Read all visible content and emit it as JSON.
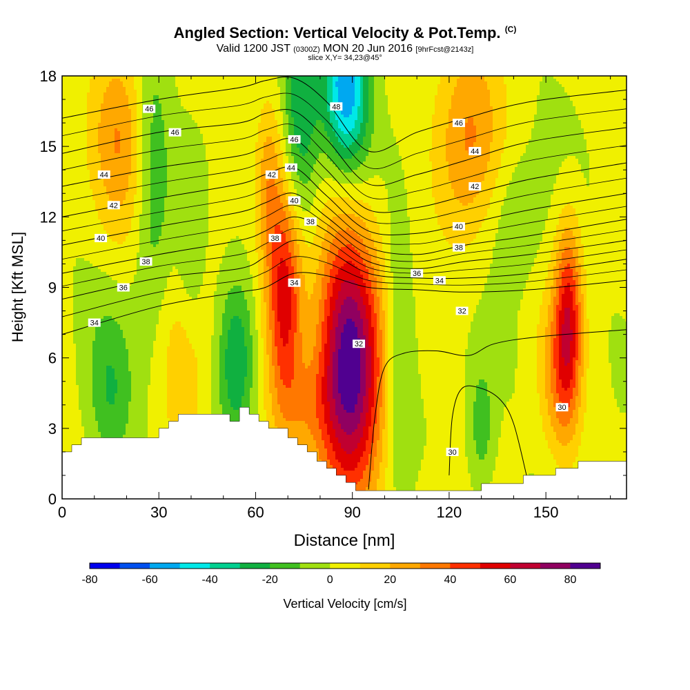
{
  "header": {
    "title": "Angled Section: Vertical Velocity & Pot.Temp.",
    "title_unit": "(C)",
    "valid_prefix": "Valid 1200 JST",
    "valid_utc": "(0300Z)",
    "valid_date": "MON 20 Jun 2016",
    "forecast_info": "[9hrFcst@2143z]",
    "slice_info": "slice X,Y= 34,23@45°"
  },
  "colors": {
    "scale": [
      "#0000ee",
      "#0050f0",
      "#00a8f0",
      "#00e8e8",
      "#00d090",
      "#10b040",
      "#40c020",
      "#a0e010",
      "#f0f000",
      "#ffd000",
      "#ffa800",
      "#ff7800",
      "#ff3000",
      "#e00000",
      "#c00030",
      "#900060",
      "#500090"
    ],
    "terrain": "#ffffff",
    "contour": "#000000"
  },
  "chart_data": {
    "type": "heatmap",
    "xlabel": "Distance [nm]",
    "ylabel": "Height [Kft MSL]",
    "xlim": [
      0,
      175
    ],
    "ylim": [
      0,
      18
    ],
    "xticks": [
      0,
      30,
      60,
      90,
      120,
      150
    ],
    "yticks": [
      0,
      3,
      6,
      9,
      12,
      15,
      18
    ],
    "colorbar": {
      "label": "Vertical Velocity [cm/s]",
      "tick_labels": [
        "-80",
        "-60",
        "-40",
        "-20",
        "0",
        "20",
        "40",
        "60",
        "80"
      ],
      "tick_values": [
        -80,
        -60,
        -40,
        -20,
        0,
        20,
        40,
        60,
        80
      ],
      "levels": [
        -80,
        -70,
        -60,
        -50,
        -40,
        -30,
        -20,
        -10,
        0,
        10,
        20,
        30,
        40,
        50,
        60,
        70,
        80,
        90
      ]
    },
    "terrain_profile": [
      [
        0,
        2.0
      ],
      [
        3,
        2.0
      ],
      [
        3,
        2.3
      ],
      [
        6,
        2.3
      ],
      [
        6,
        2.6
      ],
      [
        30,
        2.6
      ],
      [
        30,
        3.0
      ],
      [
        33,
        3.0
      ],
      [
        33,
        3.3
      ],
      [
        36,
        3.3
      ],
      [
        36,
        3.6
      ],
      [
        52,
        3.6
      ],
      [
        52,
        3.3
      ],
      [
        55,
        3.3
      ],
      [
        55,
        3.9
      ],
      [
        58,
        3.9
      ],
      [
        58,
        3.6
      ],
      [
        61,
        3.6
      ],
      [
        61,
        3.3
      ],
      [
        64,
        3.3
      ],
      [
        64,
        3.0
      ],
      [
        70,
        3.0
      ],
      [
        70,
        2.6
      ],
      [
        73,
        2.6
      ],
      [
        73,
        2.3
      ],
      [
        76,
        2.3
      ],
      [
        76,
        2.0
      ],
      [
        79,
        2.0
      ],
      [
        79,
        1.6
      ],
      [
        82,
        1.6
      ],
      [
        82,
        1.3
      ],
      [
        85,
        1.3
      ],
      [
        85,
        1.0
      ],
      [
        88,
        1.0
      ],
      [
        88,
        0.7
      ],
      [
        91,
        0.7
      ],
      [
        91,
        0.35
      ],
      [
        130,
        0.35
      ],
      [
        130,
        0.65
      ],
      [
        143,
        0.65
      ],
      [
        143,
        1.0
      ],
      [
        153,
        1.0
      ],
      [
        153,
        1.3
      ],
      [
        160,
        1.3
      ],
      [
        160,
        1.6
      ],
      [
        175,
        1.6
      ]
    ],
    "updrafts": [
      {
        "x": 89,
        "y": 5.5,
        "sx": 7,
        "sy": 4.2,
        "w": 85
      },
      {
        "x": 69,
        "y": 8.5,
        "sx": 4,
        "sy": 3.2,
        "w": 58
      },
      {
        "x": 157,
        "y": 7.5,
        "sx": 3,
        "sy": 3.0,
        "w": 50
      },
      {
        "x": 153,
        "y": 5.0,
        "sx": 4,
        "sy": 2.5,
        "w": 20
      },
      {
        "x": 18,
        "y": 15.5,
        "sx": 6,
        "sy": 3.0,
        "w": 25
      },
      {
        "x": 126,
        "y": 15.5,
        "sx": 7,
        "sy": 3.2,
        "w": 28
      },
      {
        "x": 64,
        "y": 13.5,
        "sx": 3,
        "sy": 2.5,
        "w": 22
      },
      {
        "x": 38,
        "y": 5.5,
        "sx": 5,
        "sy": 3.0,
        "w": 15
      },
      {
        "x": 75,
        "y": 4.0,
        "sx": 6,
        "sy": 1.5,
        "w": 15
      }
    ],
    "downdrafts": [
      {
        "x": 88,
        "y": 17.5,
        "sx": 5,
        "sy": 2.5,
        "w": 60
      },
      {
        "x": 74,
        "y": 16.5,
        "sx": 4,
        "sy": 3.5,
        "w": 35
      },
      {
        "x": 54,
        "y": 6.0,
        "sx": 4,
        "sy": 2.5,
        "w": 32
      },
      {
        "x": 28,
        "y": 14.0,
        "sx": 4,
        "sy": 5.0,
        "w": 18
      },
      {
        "x": 15,
        "y": 4.5,
        "sx": 5,
        "sy": 2.5,
        "w": 20
      },
      {
        "x": 104,
        "y": 6.0,
        "sx": 3,
        "sy": 4.0,
        "w": 18
      },
      {
        "x": 130,
        "y": 3.0,
        "sx": 3,
        "sy": 2.0,
        "w": 20
      },
      {
        "x": 40,
        "y": 10.0,
        "sx": 3,
        "sy": 3.0,
        "w": 12
      },
      {
        "x": 141,
        "y": 12.0,
        "sx": 6,
        "sy": 2.0,
        "w": 12
      }
    ],
    "isentropes": [
      {
        "value": 34,
        "points": [
          [
            0,
            7.0
          ],
          [
            30,
            8.2
          ],
          [
            55,
            8.8
          ],
          [
            63,
            9.0
          ],
          [
            72,
            9.6
          ],
          [
            82,
            9.5
          ],
          [
            95,
            9.0
          ],
          [
            110,
            8.9
          ],
          [
            125,
            8.8
          ],
          [
            145,
            8.9
          ],
          [
            175,
            9.3
          ]
        ]
      },
      {
        "value": 36,
        "points": [
          [
            0,
            8.5
          ],
          [
            30,
            9.4
          ],
          [
            55,
            9.8
          ],
          [
            63,
            10.3
          ],
          [
            72,
            11.0
          ],
          [
            82,
            10.6
          ],
          [
            95,
            9.6
          ],
          [
            110,
            9.4
          ],
          [
            125,
            9.4
          ],
          [
            145,
            9.6
          ],
          [
            175,
            10.2
          ]
        ]
      },
      {
        "value": 38,
        "points": [
          [
            0,
            9.6
          ],
          [
            30,
            10.4
          ],
          [
            55,
            11.0
          ],
          [
            63,
            11.4
          ],
          [
            72,
            12.0
          ],
          [
            82,
            11.4
          ],
          [
            95,
            10.1
          ],
          [
            110,
            9.8
          ],
          [
            125,
            10.1
          ],
          [
            145,
            10.4
          ],
          [
            175,
            11.0
          ]
        ]
      },
      {
        "value": 40,
        "points": [
          [
            0,
            10.8
          ],
          [
            30,
            11.6
          ],
          [
            55,
            12.2
          ],
          [
            63,
            12.6
          ],
          [
            72,
            13.0
          ],
          [
            82,
            12.0
          ],
          [
            95,
            10.7
          ],
          [
            110,
            10.4
          ],
          [
            125,
            10.8
          ],
          [
            145,
            11.2
          ],
          [
            175,
            11.9
          ]
        ]
      },
      {
        "value": 42,
        "points": [
          [
            0,
            12.0
          ],
          [
            30,
            12.8
          ],
          [
            55,
            13.4
          ],
          [
            63,
            13.8
          ],
          [
            72,
            14.1
          ],
          [
            82,
            12.9
          ],
          [
            95,
            11.4
          ],
          [
            110,
            11.3
          ],
          [
            125,
            11.7
          ],
          [
            145,
            12.3
          ],
          [
            175,
            13.0
          ]
        ]
      },
      {
        "value": 44,
        "points": [
          [
            0,
            13.3
          ],
          [
            30,
            14.1
          ],
          [
            55,
            14.6
          ],
          [
            63,
            15.0
          ],
          [
            72,
            15.3
          ],
          [
            82,
            14.0
          ],
          [
            95,
            12.3
          ],
          [
            110,
            12.4
          ],
          [
            125,
            12.9
          ],
          [
            145,
            13.6
          ],
          [
            175,
            14.3
          ]
        ]
      },
      {
        "value": 46,
        "points": [
          [
            0,
            14.7
          ],
          [
            30,
            15.6
          ],
          [
            55,
            16.0
          ],
          [
            63,
            16.4
          ],
          [
            72,
            16.5
          ],
          [
            82,
            15.3
          ],
          [
            95,
            13.4
          ],
          [
            110,
            13.8
          ],
          [
            125,
            14.4
          ],
          [
            145,
            15.2
          ],
          [
            175,
            15.8
          ]
        ]
      },
      {
        "value": 48,
        "points": [
          [
            0,
            16.2
          ],
          [
            30,
            17.0
          ],
          [
            55,
            17.5
          ],
          [
            63,
            17.8
          ],
          [
            72,
            17.9
          ],
          [
            82,
            16.9
          ],
          [
            95,
            14.8
          ],
          [
            110,
            15.6
          ],
          [
            125,
            16.2
          ],
          [
            145,
            16.9
          ],
          [
            175,
            17.4
          ]
        ]
      },
      {
        "value": 30,
        "points": [
          [
            120,
            1.0
          ],
          [
            121,
            3.5
          ],
          [
            124,
            4.7
          ],
          [
            130,
            4.7
          ],
          [
            136,
            4.2
          ],
          [
            140,
            3.2
          ],
          [
            144,
            1.0
          ]
        ]
      },
      {
        "value": 32,
        "points": [
          [
            95,
            0.4
          ],
          [
            97,
            3.5
          ],
          [
            100,
            5.6
          ],
          [
            106,
            6.2
          ],
          [
            116,
            6.3
          ],
          [
            126,
            6.1
          ],
          [
            134,
            6.6
          ],
          [
            148,
            6.9
          ],
          [
            175,
            7.2
          ]
        ]
      }
    ],
    "contour_labels": [
      {
        "x": 27,
        "y": 16.6,
        "text": "46"
      },
      {
        "x": 35,
        "y": 15.6,
        "text": "46"
      },
      {
        "x": 13,
        "y": 13.8,
        "text": "44"
      },
      {
        "x": 16,
        "y": 12.5,
        "text": "42"
      },
      {
        "x": 12,
        "y": 11.1,
        "text": "40"
      },
      {
        "x": 26,
        "y": 10.1,
        "text": "38"
      },
      {
        "x": 19,
        "y": 9.0,
        "text": "36"
      },
      {
        "x": 10,
        "y": 7.5,
        "text": "34"
      },
      {
        "x": 85,
        "y": 16.7,
        "text": "48"
      },
      {
        "x": 72,
        "y": 15.3,
        "text": "46"
      },
      {
        "x": 71,
        "y": 14.1,
        "text": "44"
      },
      {
        "x": 65,
        "y": 13.8,
        "text": "42"
      },
      {
        "x": 72,
        "y": 12.7,
        "text": "40"
      },
      {
        "x": 77,
        "y": 11.8,
        "text": "38"
      },
      {
        "x": 66,
        "y": 11.1,
        "text": "38"
      },
      {
        "x": 72,
        "y": 9.2,
        "text": "34"
      },
      {
        "x": 92,
        "y": 6.6,
        "text": "32"
      },
      {
        "x": 110,
        "y": 9.6,
        "text": "36"
      },
      {
        "x": 117,
        "y": 9.3,
        "text": "34"
      },
      {
        "x": 123,
        "y": 16.0,
        "text": "46"
      },
      {
        "x": 128,
        "y": 14.8,
        "text": "44"
      },
      {
        "x": 128,
        "y": 13.3,
        "text": "42"
      },
      {
        "x": 123,
        "y": 11.6,
        "text": "40"
      },
      {
        "x": 123,
        "y": 10.7,
        "text": "38"
      },
      {
        "x": 124,
        "y": 8.0,
        "text": "32"
      },
      {
        "x": 121,
        "y": 2.0,
        "text": "30"
      },
      {
        "x": 155,
        "y": 3.9,
        "text": "30"
      }
    ]
  }
}
